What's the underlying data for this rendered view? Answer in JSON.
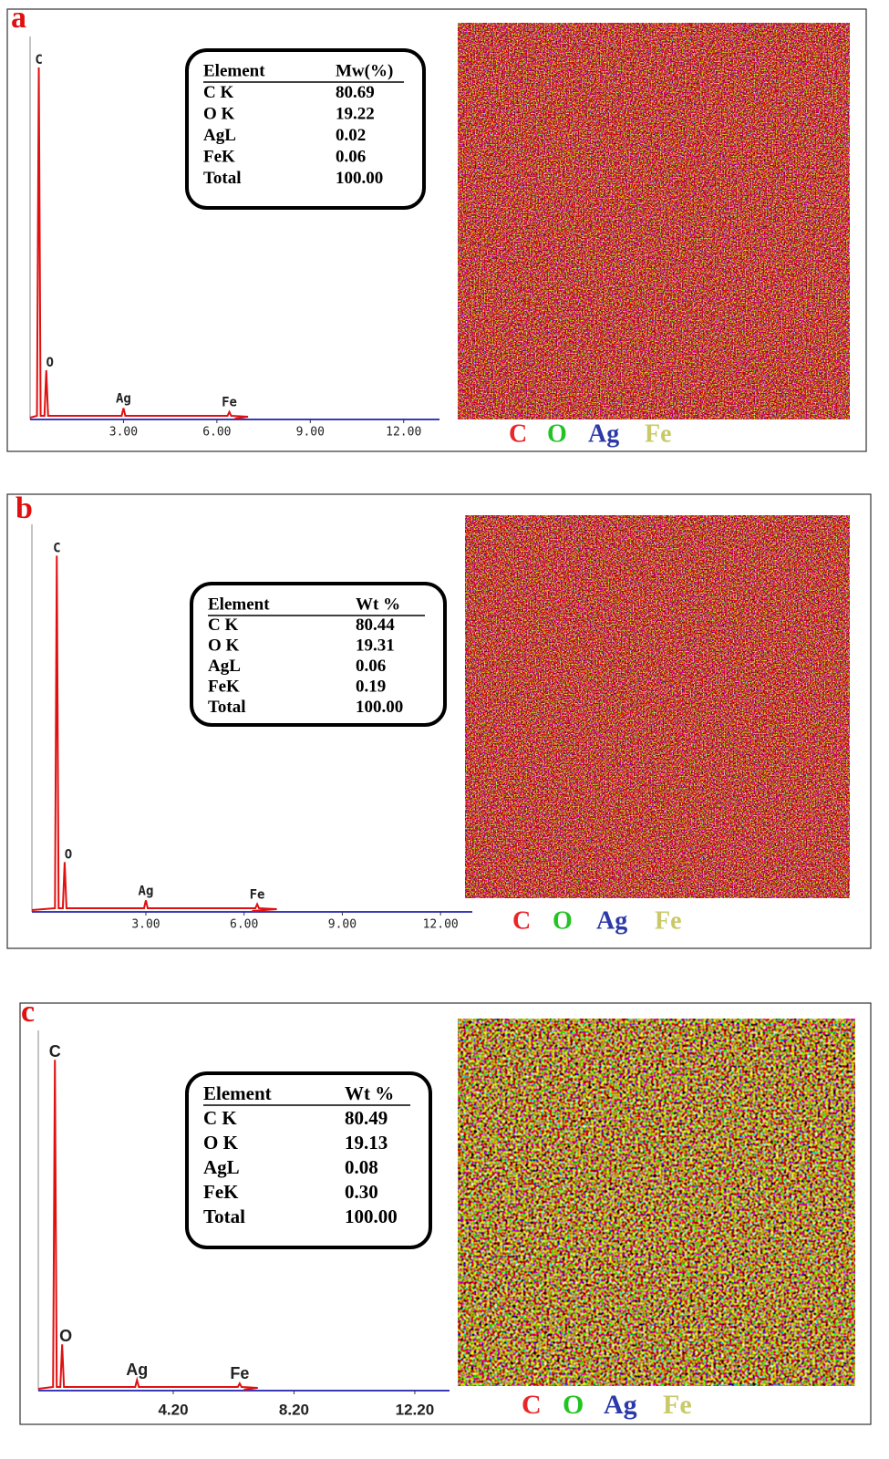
{
  "panels": [
    {
      "label": "a",
      "table": {
        "header": [
          "Element",
          "Mw(%)"
        ],
        "rows": [
          [
            "C K",
            "80.69"
          ],
          [
            "O K",
            "19.22"
          ],
          [
            "AgL",
            "0.02"
          ],
          [
            "FeK",
            "0.06"
          ],
          [
            "Total",
            "100.00"
          ]
        ]
      },
      "spectrum": {
        "xlim": [
          0,
          13.15
        ],
        "xticks": [
          {
            "value": 3,
            "label": "3.00"
          },
          {
            "value": 6,
            "label": "6.00"
          },
          {
            "value": 9,
            "label": "9.00"
          },
          {
            "value": 12,
            "label": "12.00"
          }
        ],
        "peaks": [
          {
            "label": "C",
            "x": 0.28
          },
          {
            "label": "O",
            "x": 0.52
          },
          {
            "label": "Ag",
            "x": 3.0
          },
          {
            "label": "Fe",
            "x": 6.4
          }
        ]
      },
      "legend": [
        {
          "name": "C",
          "color": "#e8262a"
        },
        {
          "name": "O",
          "color": "#22c322"
        },
        {
          "name": "Ag",
          "color": "#2b3aa8"
        },
        {
          "name": "Fe",
          "color": "#c9c96a"
        }
      ]
    },
    {
      "label": "b",
      "table": {
        "header": [
          "Element",
          "Wt %"
        ],
        "rows": [
          [
            "C K",
            "80.44"
          ],
          [
            "O K",
            "19.31"
          ],
          [
            "AgL",
            "0.06"
          ],
          [
            "FeK",
            "0.19"
          ],
          [
            "Total",
            "100.00"
          ]
        ]
      },
      "spectrum": {
        "xlim": [
          -0.48,
          12.97
        ],
        "xticks": [
          {
            "value": 3,
            "label": "3.00"
          },
          {
            "value": 6,
            "label": "6.00"
          },
          {
            "value": 9,
            "label": "9.00"
          },
          {
            "value": 12,
            "label": "12.00"
          }
        ],
        "peaks": [
          {
            "label": "C",
            "x": 0.28
          },
          {
            "label": "O",
            "x": 0.52
          },
          {
            "label": "Ag",
            "x": 3.0
          },
          {
            "label": "Fe",
            "x": 6.4
          }
        ]
      },
      "legend": [
        {
          "name": "C",
          "color": "#e8262a"
        },
        {
          "name": "O",
          "color": "#22c322"
        },
        {
          "name": "Ag",
          "color": "#2b3aa8"
        },
        {
          "name": "Fe",
          "color": "#c9c96a"
        }
      ]
    },
    {
      "label": "c",
      "table": {
        "header": [
          "Element",
          "Wt %"
        ],
        "rows": [
          [
            "C K",
            "80.49"
          ],
          [
            "O K",
            "19.13"
          ],
          [
            "AgL",
            "0.08"
          ],
          [
            "FeK",
            "0.30"
          ],
          [
            "Total",
            "100.00"
          ]
        ]
      },
      "spectrum": {
        "xlim": [
          -0.27,
          13.35
        ],
        "xticks": [
          {
            "value": 4.2,
            "label": "4.20"
          },
          {
            "value": 8.2,
            "label": "8.20"
          },
          {
            "value": 12.2,
            "label": "12.20"
          }
        ],
        "peaks": [
          {
            "label": "C",
            "x": 0.28
          },
          {
            "label": "O",
            "x": 0.52
          },
          {
            "label": "Ag",
            "x": 3.0
          },
          {
            "label": "Fe",
            "x": 6.4
          }
        ]
      },
      "legend": [
        {
          "name": "C",
          "color": "#e8262a"
        },
        {
          "name": "O",
          "color": "#22c322"
        },
        {
          "name": "Ag",
          "color": "#2b3aa8"
        },
        {
          "name": "Fe",
          "color": "#c9c96a"
        }
      ]
    }
  ]
}
